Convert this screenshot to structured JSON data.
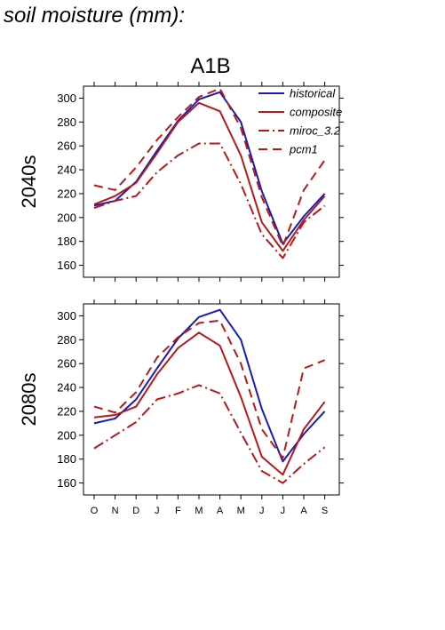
{
  "page": {
    "heading": "soil moisture (mm):"
  },
  "chart_data": {
    "type": "line",
    "title": "A1B",
    "categories": [
      "O",
      "N",
      "D",
      "J",
      "F",
      "M",
      "A",
      "M",
      "J",
      "J",
      "A",
      "S"
    ],
    "legend": {
      "position": "top-right"
    },
    "series_styles": [
      {
        "name": "historical",
        "color": "#1a1ab4",
        "dash": ""
      },
      {
        "name": "composite",
        "color": "#b41a1a",
        "dash": ""
      },
      {
        "name": "miroc_3.2",
        "color": "#b41a1a",
        "dash": "12,4,2,4"
      },
      {
        "name": "pcm1",
        "color": "#b41a1a",
        "dash": "10,6"
      }
    ],
    "panels": [
      {
        "ylabel": "2040s",
        "ylim": [
          150,
          310
        ],
        "yticks": [
          160,
          180,
          200,
          220,
          240,
          260,
          280,
          300
        ],
        "series": [
          {
            "name": "historical",
            "values": [
              210,
              214,
              230,
              256,
              281,
              299,
              305,
              280,
              222,
              178,
              201,
              220
            ]
          },
          {
            "name": "composite",
            "values": [
              211,
              218,
              229,
              254,
              280,
              296,
              289,
              252,
              196,
              172,
              198,
              218
            ]
          },
          {
            "name": "miroc_3.2",
            "values": [
              208,
              214,
              218,
              238,
              252,
              262,
              262,
              228,
              186,
              166,
              196,
              210
            ]
          },
          {
            "name": "pcm1",
            "values": [
              227,
              223,
              242,
              265,
              284,
              301,
              308,
              275,
              217,
              176,
              223,
              248
            ]
          }
        ]
      },
      {
        "ylabel": "2080s",
        "ylim": [
          150,
          310
        ],
        "yticks": [
          160,
          180,
          200,
          220,
          240,
          260,
          280,
          300
        ],
        "series": [
          {
            "name": "historical",
            "values": [
              210,
              214,
              230,
              256,
              281,
              299,
              305,
              280,
              222,
              178,
              201,
              220
            ]
          },
          {
            "name": "composite",
            "values": [
              215,
              217,
              224,
              251,
              273,
              286,
              275,
              232,
              182,
              167,
              205,
              228
            ]
          },
          {
            "name": "miroc_3.2",
            "values": [
              189,
              200,
              211,
              230,
              235,
              242,
              235,
              202,
              170,
              160,
              176,
              190
            ]
          },
          {
            "name": "pcm1",
            "values": [
              224,
              219,
              236,
              265,
              282,
              294,
              296,
              260,
              205,
              181,
              256,
              263
            ]
          }
        ]
      }
    ]
  }
}
